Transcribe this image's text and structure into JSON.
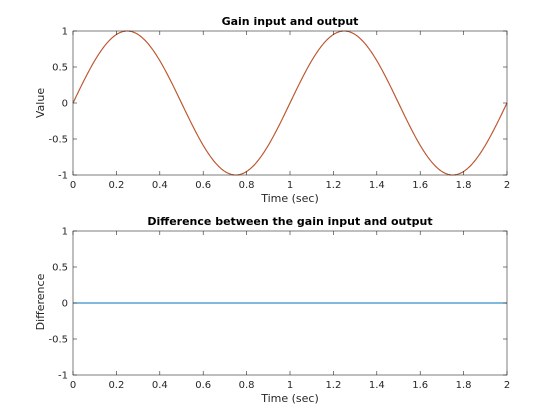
{
  "chart_data": [
    {
      "type": "line",
      "title": "Gain input and output",
      "xlabel": "Time (sec)",
      "ylabel": "Value",
      "xlim": [
        0,
        2
      ],
      "ylim": [
        -1,
        1
      ],
      "xticks": [
        "0",
        "0.2",
        "0.4",
        "0.6",
        "0.8",
        "1",
        "1.2",
        "1.4",
        "1.6",
        "1.8",
        "2"
      ],
      "yticks": [
        "-1",
        "-0.5",
        "0",
        "0.5",
        "1"
      ],
      "grid": false,
      "series": [
        {
          "color": "#0072BD",
          "function": "sin",
          "frequency_hz": 1,
          "amplitude": 1,
          "x": [
            0,
            0.05,
            0.1,
            0.15,
            0.2,
            0.25,
            0.3,
            0.35,
            0.4,
            0.45,
            0.5,
            0.55,
            0.6,
            0.65,
            0.7,
            0.75,
            0.8,
            0.85,
            0.9,
            0.95,
            1.0,
            1.05,
            1.1,
            1.15,
            1.2,
            1.25,
            1.3,
            1.35,
            1.4,
            1.45,
            1.5,
            1.55,
            1.6,
            1.65,
            1.7,
            1.75,
            1.8,
            1.85,
            1.9,
            1.95,
            2.0
          ],
          "y": [
            0,
            0.309,
            0.588,
            0.809,
            0.951,
            1,
            0.951,
            0.809,
            0.588,
            0.309,
            0,
            -0.309,
            -0.588,
            -0.809,
            -0.951,
            -1,
            -0.951,
            -0.809,
            -0.588,
            -0.309,
            0,
            0.309,
            0.588,
            0.809,
            0.951,
            1,
            0.951,
            0.809,
            0.588,
            0.309,
            0,
            -0.309,
            -0.588,
            -0.809,
            -0.951,
            -1,
            -0.951,
            -0.809,
            -0.588,
            -0.309,
            0
          ]
        },
        {
          "color": "#D95319",
          "function": "sin",
          "frequency_hz": 1,
          "amplitude": 1,
          "x": [
            0,
            0.05,
            0.1,
            0.15,
            0.2,
            0.25,
            0.3,
            0.35,
            0.4,
            0.45,
            0.5,
            0.55,
            0.6,
            0.65,
            0.7,
            0.75,
            0.8,
            0.85,
            0.9,
            0.95,
            1.0,
            1.05,
            1.1,
            1.15,
            1.2,
            1.25,
            1.3,
            1.35,
            1.4,
            1.45,
            1.5,
            1.55,
            1.6,
            1.65,
            1.7,
            1.75,
            1.8,
            1.85,
            1.9,
            1.95,
            2.0
          ],
          "y": [
            0,
            0.309,
            0.588,
            0.809,
            0.951,
            1,
            0.951,
            0.809,
            0.588,
            0.309,
            0,
            -0.309,
            -0.588,
            -0.809,
            -0.951,
            -1,
            -0.951,
            -0.809,
            -0.588,
            -0.309,
            0,
            0.309,
            0.588,
            0.809,
            0.951,
            1,
            0.951,
            0.809,
            0.588,
            0.309,
            0,
            -0.309,
            -0.588,
            -0.809,
            -0.951,
            -1,
            -0.951,
            -0.809,
            -0.588,
            -0.309,
            0
          ]
        }
      ]
    },
    {
      "type": "line",
      "title": "Difference between the gain input and output",
      "xlabel": "Time (sec)",
      "ylabel": "Difference",
      "xlim": [
        0,
        2
      ],
      "ylim": [
        -1,
        1
      ],
      "xticks": [
        "0",
        "0.2",
        "0.4",
        "0.6",
        "0.8",
        "1",
        "1.2",
        "1.4",
        "1.6",
        "1.8",
        "2"
      ],
      "yticks": [
        "-1",
        "-0.5",
        "0",
        "0.5",
        "1"
      ],
      "grid": false,
      "series": [
        {
          "color": "#0072BD",
          "x": [
            0,
            2
          ],
          "y": [
            0,
            0
          ]
        }
      ]
    }
  ]
}
